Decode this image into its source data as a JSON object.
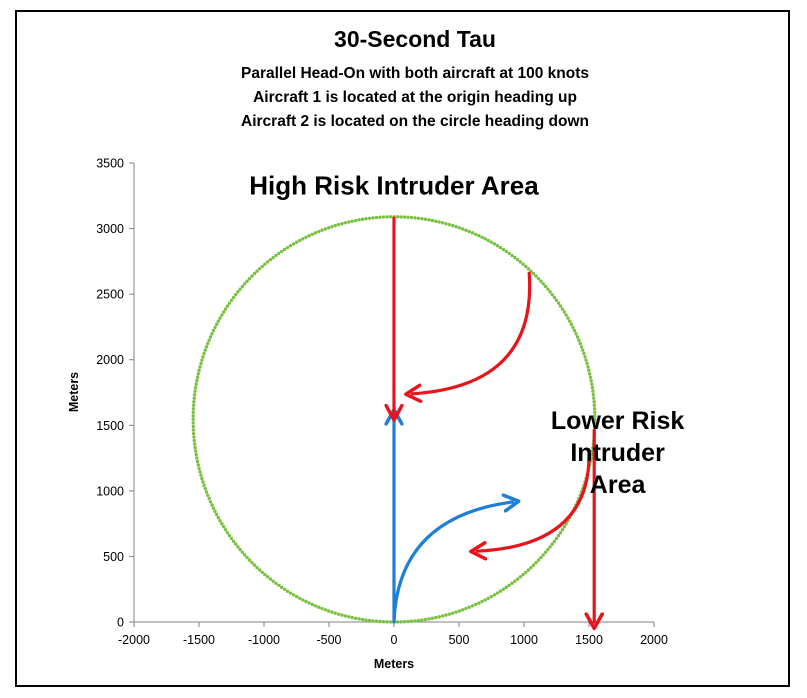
{
  "chart_data": {
    "type": "scatter",
    "title": "30-Second Tau",
    "subtitles": [
      "Parallel Head-On with both aircraft at 100 knots",
      "Aircraft 1 is located at the origin heading up",
      "Aircraft 2 is located on the circle heading down"
    ],
    "xlabel": "Meters",
    "ylabel": "Meters",
    "xlim": [
      -2000,
      2000
    ],
    "ylim": [
      0,
      3500
    ],
    "xticks": [
      "-2000",
      "-1500",
      "-1000",
      "-500",
      "0",
      "500",
      "1000",
      "1500",
      "2000"
    ],
    "yticks": [
      "0",
      "500",
      "1000",
      "1500",
      "2000",
      "2500",
      "3000",
      "3500"
    ],
    "grid": false,
    "legend": "none",
    "series": [
      {
        "circle_center": [
          0,
          1545
        ],
        "circle_radius": 1545,
        "points": 360,
        "color": "#7ac143"
      }
    ],
    "annotations": [
      {
        "lines": [
          "High Risk Intruder Area"
        ],
        "x": 0,
        "y": 3330,
        "style": "big"
      },
      {
        "lines": [
          "Lower Risk",
          "Intruder",
          "Area"
        ],
        "x": 1720,
        "y": 1540,
        "style": "normal"
      }
    ],
    "arrows": [
      {
        "name": "aircraft1-arrow",
        "color": "#1f7fd4",
        "kind": "line",
        "from": [
          0,
          0
        ],
        "to": [
          0,
          1570
        ]
      },
      {
        "name": "aircraft1-turn-arrow",
        "color": "#1f7fd4",
        "kind": "curve",
        "from": [
          0,
          0
        ],
        "ctrl": [
          30,
          800
        ],
        "to": [
          910,
          915
        ]
      },
      {
        "name": "intruder-top-arrow",
        "color": "#e8141b",
        "kind": "line",
        "from": [
          0,
          3080
        ],
        "to": [
          0,
          1590
        ]
      },
      {
        "name": "intruder-upper-right-arrow",
        "color": "#e8141b",
        "kind": "curve",
        "from": [
          1040,
          2660
        ],
        "ctrl": [
          1100,
          1800
        ],
        "to": [
          140,
          1740
        ]
      },
      {
        "name": "intruder-right-arrow",
        "color": "#e8141b",
        "kind": "line",
        "from": [
          1540,
          1460
        ],
        "to": [
          1540,
          0
        ]
      },
      {
        "name": "intruder-lower-right-arrow",
        "color": "#e8141b",
        "kind": "curve",
        "from": [
          1500,
          1270
        ],
        "ctrl": [
          1500,
          580
        ],
        "to": [
          640,
          540
        ]
      }
    ]
  }
}
